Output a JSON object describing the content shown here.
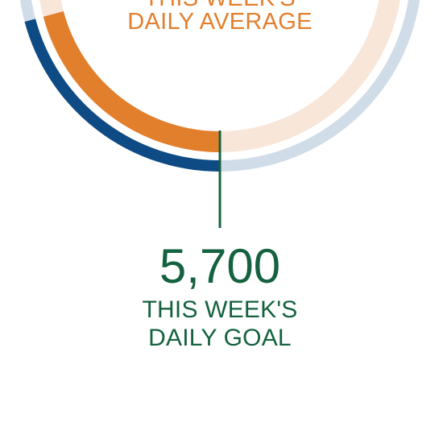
{
  "colors": {
    "goal_ring": "#0E4A84",
    "goal_track": "#D0DDE8",
    "average_ring": "#E27F2D",
    "average_track": "#F8E6D9",
    "goal_text": "#14623F",
    "average_text": "#E27F2D"
  },
  "average": {
    "label_line1": "THIS WEEK'S",
    "label_line2": "DAILY AVERAGE"
  },
  "goal": {
    "value": "5,700",
    "label_line1": "THIS WEEK'S",
    "label_line2": "DAILY GOAL"
  }
}
